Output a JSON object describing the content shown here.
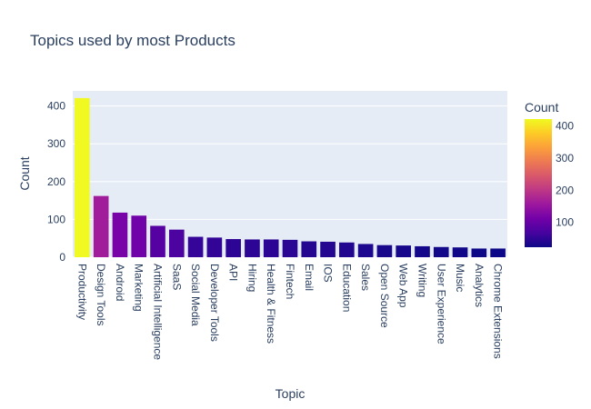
{
  "chart_data": {
    "type": "bar",
    "title": "Topics used by most Products",
    "xlabel": "Topic",
    "ylabel": "Count",
    "ylim": [
      0,
      440
    ],
    "yticks": [
      0,
      100,
      200,
      300,
      400
    ],
    "grid": true,
    "categories": [
      "Productivity",
      "Design Tools",
      "Android",
      "Marketing",
      "Artificial Intelligence",
      "SaaS",
      "Social Media",
      "Developer Tools",
      "API",
      "Hiring",
      "Health & Fitness",
      "Fintech",
      "Email",
      "IOS",
      "Education",
      "Sales",
      "Open Source",
      "Web App",
      "Writing",
      "User Experience",
      "Music",
      "Analytics",
      "Chrome Extensions"
    ],
    "values": [
      421,
      162,
      118,
      110,
      83,
      73,
      54,
      52,
      48,
      47,
      47,
      46,
      42,
      41,
      39,
      35,
      32,
      31,
      29,
      27,
      26,
      23,
      23
    ],
    "colorscale": {
      "title": "Count",
      "min": 23,
      "max": 421,
      "ticks": [
        100,
        200,
        300,
        400
      ],
      "colors": [
        "#0d0887",
        "#46039f",
        "#7201a8",
        "#9c179e",
        "#bd3786",
        "#d8576b",
        "#ed7953",
        "#fb9f3a",
        "#fdca26",
        "#f0f921"
      ]
    }
  }
}
